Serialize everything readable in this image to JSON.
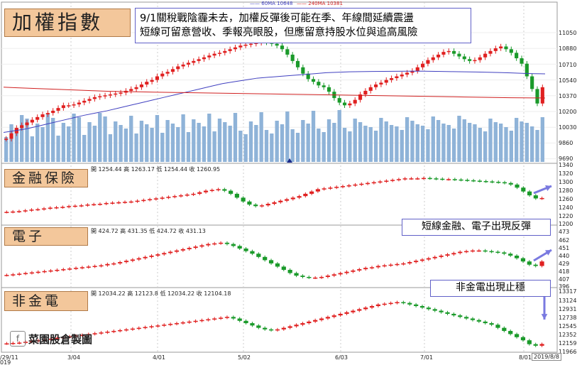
{
  "legend": {
    "ma60": "60MA 10648",
    "ma240": "240MA 10381",
    "ma60_color": "#4040c0",
    "ma240_color": "#d02020"
  },
  "annotation_main": "9/1關稅戰陰霾未去，加權反彈後可能在季、年線間延續震盪\n短線可留意營收、季報亮眼股，但應留意持股水位與追高風險",
  "annotation_fin_elec": "短線金融、電子出現反彈",
  "annotation_nonfin": "非金電出現止穩",
  "watermark": "菜園股倉製圖",
  "date_current": "2019/8/8",
  "x_dates": [
    "/29/11",
    "3/04",
    "4/01",
    "5/02",
    "6/03",
    "7/01",
    "8/01"
  ],
  "x_date_footer": "019",
  "chart_data": [
    {
      "type": "candlestick",
      "title": "加權指數",
      "y_ticks": [
        "11050",
        "10880",
        "10710",
        "10540",
        "10370",
        "10200",
        "10030",
        "9860",
        "9690"
      ],
      "ylim": [
        9690,
        11150
      ],
      "series": [
        {
          "name": "60MA",
          "value": 10648
        },
        {
          "name": "240MA",
          "value": 10381
        }
      ],
      "closes": [
        9930,
        9990,
        10050,
        10080,
        10110,
        10140,
        10170,
        10200,
        10215,
        10240,
        10270,
        10300,
        10300,
        10310,
        10330,
        10350,
        10370,
        10390,
        10400,
        10410,
        10420,
        10430,
        10440,
        10460,
        10480,
        10500,
        10530,
        10560,
        10580,
        10620,
        10650,
        10670,
        10700,
        10730,
        10750,
        10770,
        10790,
        10810,
        10830,
        10850,
        10870,
        10880,
        10900,
        10920,
        10940,
        10960,
        10970,
        10980,
        10990,
        11000,
        10995,
        10980,
        10960,
        10920,
        10860,
        10790,
        10720,
        10650,
        10590,
        10560,
        10520,
        10500,
        10450,
        10380,
        10330,
        10300,
        10320,
        10360,
        10420,
        10460,
        10500,
        10530,
        10550,
        10580,
        10600,
        10620,
        10640,
        10660,
        10680,
        10720,
        10760,
        10800,
        10830,
        10860,
        10890,
        10900,
        10870,
        10840,
        10810,
        10790,
        10800,
        10830,
        10870,
        10900,
        10930,
        10950,
        10920,
        10880,
        10820,
        10760,
        10620,
        10480,
        10320,
        10500
      ],
      "ma60_path": [
        10000,
        10020,
        10040,
        10070,
        10100,
        10130,
        10160,
        10190,
        10215,
        10240,
        10270,
        10300,
        10330,
        10360,
        10390,
        10420,
        10450,
        10480,
        10510,
        10540,
        10560,
        10580,
        10600,
        10610,
        10620,
        10630,
        10640,
        10650,
        10660,
        10665,
        10670,
        10672,
        10674,
        10675,
        10676,
        10677,
        10678,
        10676,
        10674,
        10672,
        10670,
        10668,
        10665,
        10662,
        10658,
        10654,
        10650,
        10648
      ],
      "ma240_path": [
        10500,
        10495,
        10490,
        10485,
        10480,
        10475,
        10470,
        10465,
        10460,
        10455,
        10452,
        10450,
        10448,
        10446,
        10444,
        10442,
        10440,
        10438,
        10436,
        10434,
        10432,
        10430,
        10428,
        10426,
        10424,
        10422,
        10420,
        10418,
        10416,
        10414,
        10412,
        10410,
        10408,
        10406,
        10404,
        10402,
        10400,
        10398,
        10396,
        10394,
        10392,
        10390,
        10388,
        10386,
        10384,
        10383,
        10382,
        10381
      ]
    },
    {
      "type": "candlestick",
      "title": "金融保險",
      "ohlc": {
        "open": "開 1254.44",
        "high": "高 1263.17",
        "low": "低 1254.44",
        "close": "收 1260.95"
      },
      "y_ticks": [
        "1340",
        "1320",
        "1300",
        "1280",
        "1260",
        "1240",
        "1220",
        "1200"
      ],
      "ylim": [
        1200,
        1340
      ],
      "closes": [
        1225,
        1226,
        1227,
        1229,
        1231,
        1232,
        1234,
        1236,
        1237,
        1238,
        1240,
        1241,
        1242,
        1244,
        1245,
        1246,
        1248,
        1249,
        1250,
        1251,
        1252,
        1254,
        1256,
        1258,
        1260,
        1262,
        1264,
        1266,
        1268,
        1270,
        1272,
        1276,
        1280,
        1282,
        1284,
        1280,
        1272,
        1262,
        1252,
        1244,
        1240,
        1242,
        1246,
        1250,
        1254,
        1258,
        1262,
        1266,
        1272,
        1278,
        1284,
        1286,
        1288,
        1290,
        1292,
        1294,
        1296,
        1298,
        1300,
        1302,
        1304,
        1306,
        1308,
        1310,
        1312,
        1312,
        1312,
        1313,
        1312,
        1311,
        1310,
        1310,
        1309,
        1308,
        1307,
        1306,
        1305,
        1304,
        1303,
        1302,
        1300,
        1296,
        1288,
        1278,
        1268,
        1260,
        1261
      ]
    },
    {
      "type": "candlestick",
      "title": "電子",
      "ohlc": {
        "open": "開 424.72",
        "high": "高 431.35",
        "low": "低 424.72",
        "close": "收 431.13"
      },
      "y_ticks": [
        "473",
        "462",
        "451",
        "440",
        "429",
        "418",
        "407",
        "396"
      ],
      "ylim": [
        396,
        473
      ],
      "closes": [
        410,
        411,
        412,
        413,
        414,
        415,
        416,
        417,
        418,
        419,
        420,
        421,
        422,
        423,
        424,
        425,
        427,
        428,
        430,
        432,
        434,
        436,
        438,
        440,
        442,
        444,
        446,
        448,
        450,
        452,
        454,
        456,
        458,
        459,
        460,
        458,
        455,
        451,
        447,
        443,
        438,
        433,
        428,
        423,
        418,
        413,
        409,
        407,
        406,
        406,
        407,
        409,
        411,
        413,
        415,
        417,
        419,
        421,
        422,
        424,
        425,
        426,
        427,
        428,
        430,
        432,
        434,
        436,
        438,
        440,
        442,
        444,
        446,
        447,
        448,
        448,
        447,
        446,
        445,
        443,
        440,
        436,
        431,
        426,
        424,
        431
      ]
    },
    {
      "type": "candlestick",
      "title": "非金電",
      "ohlc": {
        "open": "開 12034.22",
        "high": "高 12123.8",
        "low": "低 12034.22",
        "close": "收 12104.18"
      },
      "y_ticks": [
        "13317",
        "13124",
        "12931",
        "12738",
        "12545",
        "12352",
        "12159",
        "11966"
      ],
      "ylim": [
        11966,
        13317
      ],
      "closes": [
        12120,
        12130,
        12140,
        12160,
        12180,
        12200,
        12220,
        12240,
        12260,
        12280,
        12300,
        12320,
        12340,
        12360,
        12380,
        12400,
        12420,
        12440,
        12460,
        12480,
        12500,
        12520,
        12540,
        12560,
        12580,
        12600,
        12620,
        12640,
        12660,
        12680,
        12700,
        12720,
        12740,
        12760,
        12780,
        12800,
        12760,
        12700,
        12640,
        12580,
        12520,
        12480,
        12460,
        12480,
        12520,
        12560,
        12600,
        12640,
        12680,
        12720,
        12760,
        12800,
        12840,
        12880,
        12920,
        12960,
        13000,
        13040,
        13080,
        13120,
        13140,
        13160,
        13180,
        13160,
        13120,
        13080,
        13040,
        13000,
        12960,
        12920,
        12880,
        12840,
        12800,
        12760,
        12720,
        12680,
        12640,
        12600,
        12520,
        12440,
        12360,
        12280,
        12200,
        12100,
        12060,
        12104
      ]
    }
  ]
}
